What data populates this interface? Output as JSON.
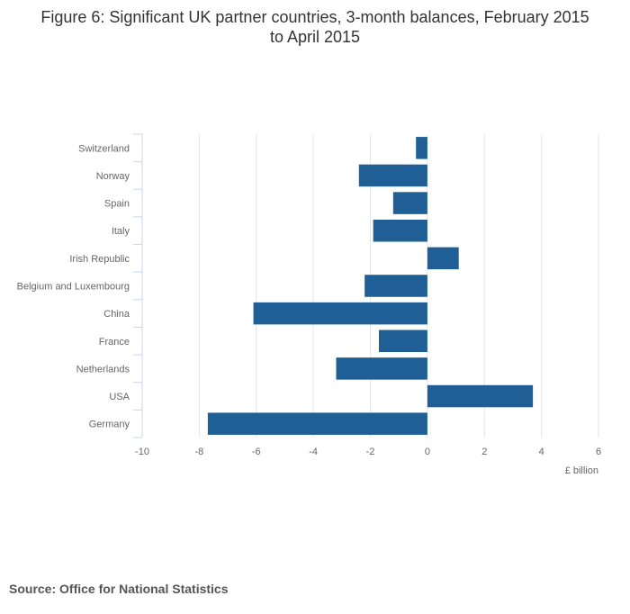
{
  "title_line1": "Figure 6: Significant UK partner countries, 3-month balances, February 2015",
  "title_line2": "to April 2015",
  "source": "Source: Office for National Statistics",
  "colors": {
    "bar": "#1f5f95",
    "grid": "#e6e6e6",
    "axis": "#ccd6eb"
  },
  "chart_data": {
    "type": "bar",
    "orientation": "horizontal",
    "title": "Figure 6: Significant UK partner countries, 3-month balances, February 2015 to April 2015",
    "xlabel": "£ billion",
    "ylabel": "",
    "xlim": [
      -10,
      6
    ],
    "ticks": [
      -10,
      -8,
      -6,
      -4,
      -2,
      0,
      2,
      4,
      6
    ],
    "grid": true,
    "categories": [
      "Switzerland",
      "Norway",
      "Spain",
      "Italy",
      "Irish Republic",
      "Belgium and Luxembourg",
      "China",
      "France",
      "Netherlands",
      "USA",
      "Germany"
    ],
    "values": [
      -0.4,
      -2.4,
      -1.2,
      -1.9,
      1.1,
      -2.2,
      -6.1,
      -1.7,
      -3.2,
      3.7,
      -7.7
    ]
  }
}
